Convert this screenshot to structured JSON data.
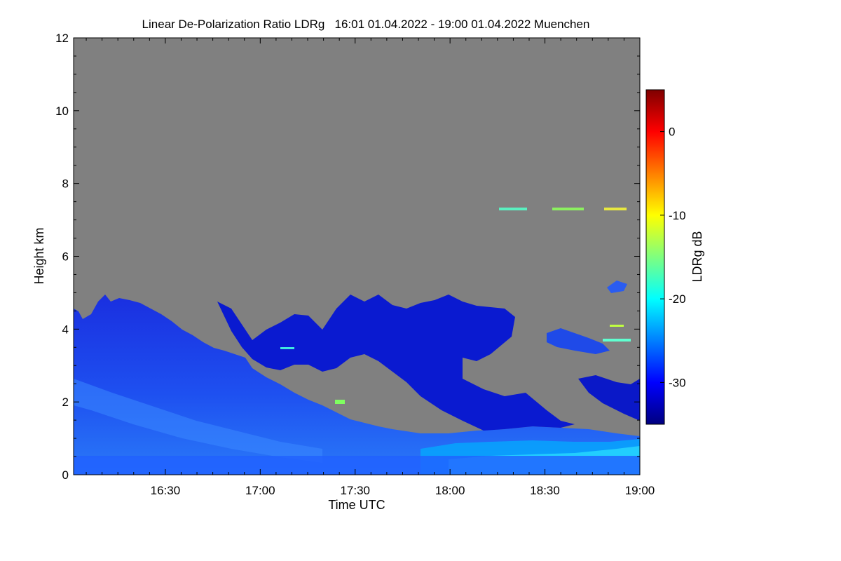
{
  "chart_data": {
    "type": "heatmap",
    "title": "Linear De-Polarization Ratio LDRg   16:01 01.04.2022 - 19:00 01.04.2022 Muenchen",
    "xlabel": "Time UTC",
    "ylabel": "Height km",
    "xlim": [
      "16:01",
      "19:00"
    ],
    "ylim": [
      0,
      12
    ],
    "x_ticks": [
      "16:30",
      "17:00",
      "17:30",
      "18:00",
      "18:30",
      "19:00"
    ],
    "y_ticks": [
      "0",
      "2",
      "4",
      "6",
      "8",
      "10",
      "12"
    ],
    "background_color": "#808080",
    "colorbar": {
      "label": "LDRg dB",
      "range": [
        -35,
        5
      ],
      "ticks": [
        "0",
        "-10",
        "-20",
        "-30"
      ],
      "colors": [
        "#00007f",
        "#0000ff",
        "#007fff",
        "#00ffff",
        "#7fff7f",
        "#ffff00",
        "#ff7f00",
        "#ff0000",
        "#7f0000"
      ]
    },
    "regions": [
      {
        "name": "boundary-layer",
        "value_db": -27,
        "color": "#1a3ae8"
      },
      {
        "name": "cirrus-fall-streaks",
        "value_db": -30,
        "color": "#0a1ad0"
      },
      {
        "name": "near-surface-layer",
        "value_db": -22,
        "color": "#00b0ff"
      },
      {
        "name": "thin-layer-7km",
        "value_db": -15,
        "color": "#5af0c0"
      }
    ]
  }
}
